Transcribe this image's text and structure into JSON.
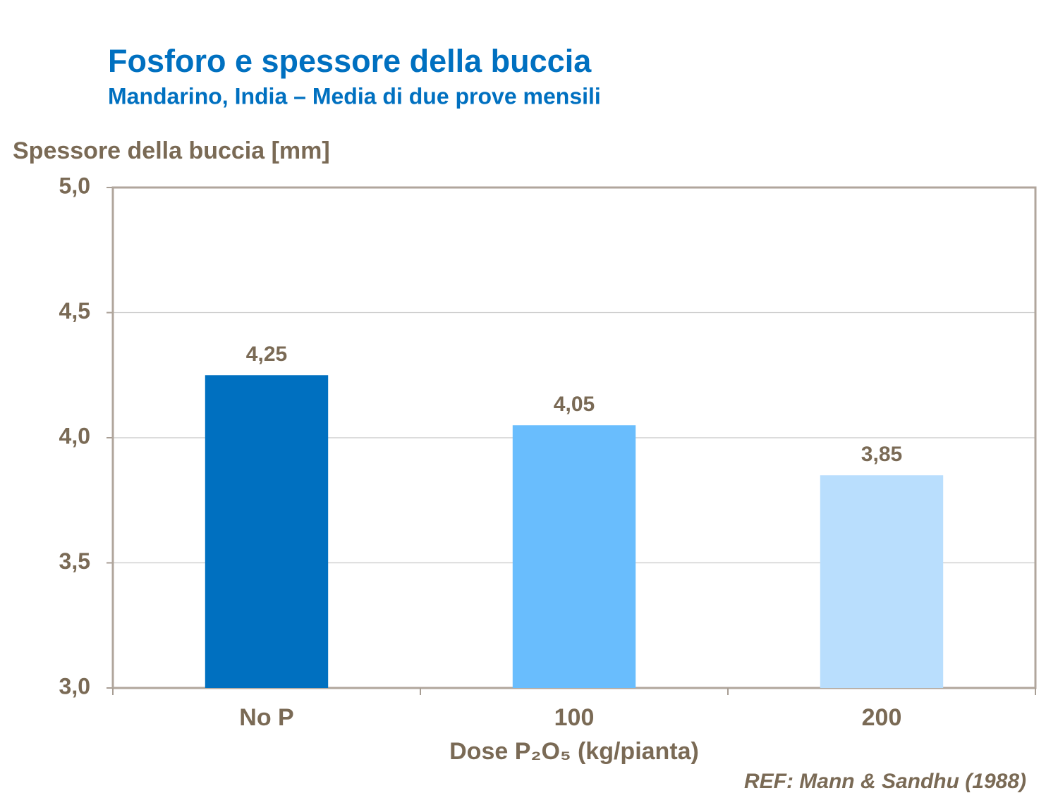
{
  "chart_data": {
    "type": "bar",
    "title": "Fosforo e spessore della buccia",
    "subtitle": "Mandarino, India – Media di due prove mensili",
    "y_label": "Spessore della buccia [mm]",
    "x_label": "Dose P₂O₅ (kg/pianta)",
    "annotation": "REF: Mann & Sandhu (1988)",
    "categories": [
      "No P",
      "100",
      "200"
    ],
    "values": [
      4.25,
      4.05,
      3.85
    ],
    "value_labels": [
      "4,25",
      "4,05",
      "3,85"
    ],
    "colors": [
      "#0070c0",
      "#69bdfd",
      "#b9defd"
    ],
    "ylim": [
      3,
      5
    ],
    "yticks": [
      {
        "value": 3,
        "label": "3,0"
      },
      {
        "value": 3.5,
        "label": "3,5"
      },
      {
        "value": 4,
        "label": "4,0"
      },
      {
        "value": 4.5,
        "label": "4,5"
      },
      {
        "value": 5,
        "label": "5,0"
      }
    ],
    "grid": true
  }
}
